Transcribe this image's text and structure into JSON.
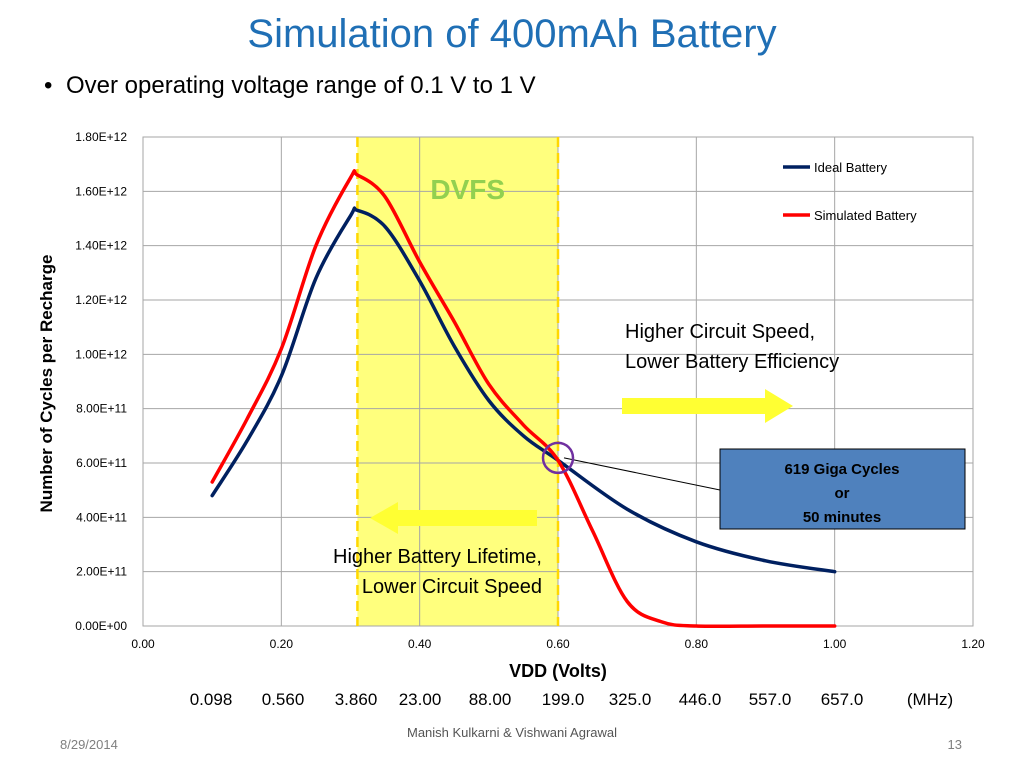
{
  "slide": {
    "title": "Simulation of 400mAh Battery",
    "bullet": "Over operating voltage range of 0.1 V to 1 V"
  },
  "chart_data": {
    "type": "line",
    "xlabel": "VDD (Volts)",
    "ylabel": "Number of Cycles per Recharge",
    "xlim": [
      0,
      1.2
    ],
    "ylim": [
      0,
      1800000000000
    ],
    "x_ticks": [
      "0.00",
      "0.20",
      "0.40",
      "0.60",
      "0.80",
      "1.00",
      "1.20"
    ],
    "y_ticks": [
      "0.00E+00",
      "2.00E+11",
      "4.00E+11",
      "6.00E+11",
      "8.00E+11",
      "1.00E+12",
      "1.20E+12",
      "1.40E+12",
      "1.60E+12",
      "1.80E+12"
    ],
    "grid": true,
    "legend_position": "top-right",
    "series": [
      {
        "name": "Ideal Battery",
        "color": "#002060",
        "x": [
          0.1,
          0.15,
          0.2,
          0.25,
          0.3,
          0.31,
          0.35,
          0.4,
          0.45,
          0.5,
          0.55,
          0.6,
          0.7,
          0.8,
          0.9,
          1.0
        ],
        "y": [
          480000000000,
          680000000000,
          920000000000,
          1280000000000,
          1510000000000,
          1530000000000,
          1470000000000,
          1270000000000,
          1030000000000,
          830000000000,
          700000000000,
          610000000000,
          430000000000,
          310000000000,
          240000000000,
          200000000000
        ]
      },
      {
        "name": "Simulated Battery",
        "color": "#ff0000",
        "x": [
          0.1,
          0.15,
          0.2,
          0.25,
          0.3,
          0.31,
          0.35,
          0.4,
          0.45,
          0.5,
          0.55,
          0.6,
          0.65,
          0.7,
          0.75,
          0.8,
          0.9,
          1.0
        ],
        "y": [
          530000000000,
          760000000000,
          1020000000000,
          1400000000000,
          1650000000000,
          1660000000000,
          1580000000000,
          1340000000000,
          1120000000000,
          890000000000,
          740000000000,
          610000000000,
          350000000000,
          90000000000,
          15000000000,
          0,
          0,
          0
        ]
      }
    ],
    "dvfs_region": {
      "label": "DVFS",
      "x_start": 0.31,
      "x_end": 0.6
    },
    "annotations": {
      "high_speed": [
        "Higher Circuit Speed,",
        "Lower Battery Efficiency"
      ],
      "high_lifetime": [
        "Higher Battery Lifetime,",
        "Lower Circuit Speed"
      ],
      "callout": [
        "619 Giga Cycles",
        "or",
        "50 minutes"
      ],
      "callout_point": {
        "x": 0.6,
        "y": 619000000000
      }
    }
  },
  "frequency_row": [
    "0.098",
    "0.560",
    "3.860",
    "23.00",
    "88.00",
    "199.0",
    "325.0",
    "446.0",
    "557.0",
    "657.0",
    "(MHz)"
  ],
  "footer": {
    "date": "8/29/2014",
    "authors": "Manish Kulkarni & Vishwani Agrawal",
    "page": "13"
  }
}
